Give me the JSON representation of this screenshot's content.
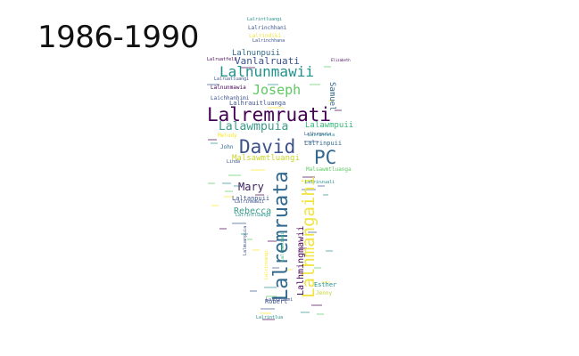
{
  "period_label": "1986-1990",
  "colors": {
    "background": "#ffffff",
    "palette": [
      "#440154",
      "#3b528b",
      "#21918c",
      "#5ec962",
      "#fde725"
    ]
  },
  "word_cloud": {
    "shape": "human-silhouette",
    "words": [
      {
        "text": "Lalremruati",
        "color": "#440154"
      },
      {
        "text": "Lalremruata",
        "color": "#31688e"
      },
      {
        "text": "Lalhmangaihi",
        "color": "#f0e442"
      },
      {
        "text": "David",
        "color": "#3b528b"
      },
      {
        "text": "PC",
        "color": "#31688e"
      },
      {
        "text": "Lalnunmawii",
        "color": "#21918c"
      },
      {
        "text": "Joseph",
        "color": "#5ec962"
      },
      {
        "text": "Lalawmpuia",
        "color": "#3b9a8a"
      },
      {
        "text": "Mary",
        "color": "#3d1e5c"
      },
      {
        "text": "Vanlalruati",
        "color": "#3b528b"
      },
      {
        "text": "Lalnunpuii",
        "color": "#31688e"
      },
      {
        "text": "Lalawmpuii",
        "color": "#35b779"
      },
      {
        "text": "Malsawmtluangi",
        "color": "#c9d431"
      },
      {
        "text": "Rebecca",
        "color": "#3b9a8a"
      },
      {
        "text": "Lalhrauitluanga",
        "color": "#3b528b"
      },
      {
        "text": "Lalhmingmawii",
        "color": "#440154"
      },
      {
        "text": "Lalrinpuii",
        "color": "#31688e"
      },
      {
        "text": "Laltanpuii",
        "color": "#3b528b"
      },
      {
        "text": "Samuel",
        "color": "#31688e"
      },
      {
        "text": "Esther",
        "color": "#21918c"
      },
      {
        "text": "Robert",
        "color": "#3b528b"
      },
      {
        "text": "John",
        "color": "#31688e"
      },
      {
        "text": "Lalrinchhani",
        "color": "#3b528b"
      },
      {
        "text": "Lalrindiki",
        "color": "#f0e442"
      },
      {
        "text": "Lalnunmawia",
        "color": "#440154"
      },
      {
        "text": "Laichhanhimi",
        "color": "#3b528b"
      },
      {
        "text": "Lalrintluangi",
        "color": "#21918c"
      },
      {
        "text": "Malsawmtluanga",
        "color": "#5ec962"
      },
      {
        "text": "Lalruatfeli",
        "color": "#440154"
      },
      {
        "text": "Lalrinchhana",
        "color": "#3b528b"
      },
      {
        "text": "Linda",
        "color": "#3b528b"
      },
      {
        "text": "Melody",
        "color": "#fde725"
      },
      {
        "text": "Jenny",
        "color": "#c9d431"
      },
      {
        "text": "Elizabeth",
        "color": "#440154"
      },
      {
        "text": "Lalrinzuali",
        "color": "#21918c"
      },
      {
        "text": "Lalruatluangi",
        "color": "#3b528b"
      },
      {
        "text": "Lalrinmawii",
        "color": "#3b528b"
      },
      {
        "text": "Lalhunpuia",
        "color": "#3b528b"
      },
      {
        "text": "Lalrinfela",
        "color": "#21918c"
      },
      {
        "text": "Lalmuanpuia",
        "color": "#3b528b"
      },
      {
        "text": "Lalrintlua",
        "color": "#21918c"
      },
      {
        "text": "Lalduhawmi",
        "color": "#3b528b"
      },
      {
        "text": "Lalremsiami",
        "color": "#35b779"
      },
      {
        "text": "Lalrinsangi",
        "color": "#fde725"
      },
      {
        "text": "Lalrintluanga",
        "color": "#21918c"
      }
    ]
  }
}
